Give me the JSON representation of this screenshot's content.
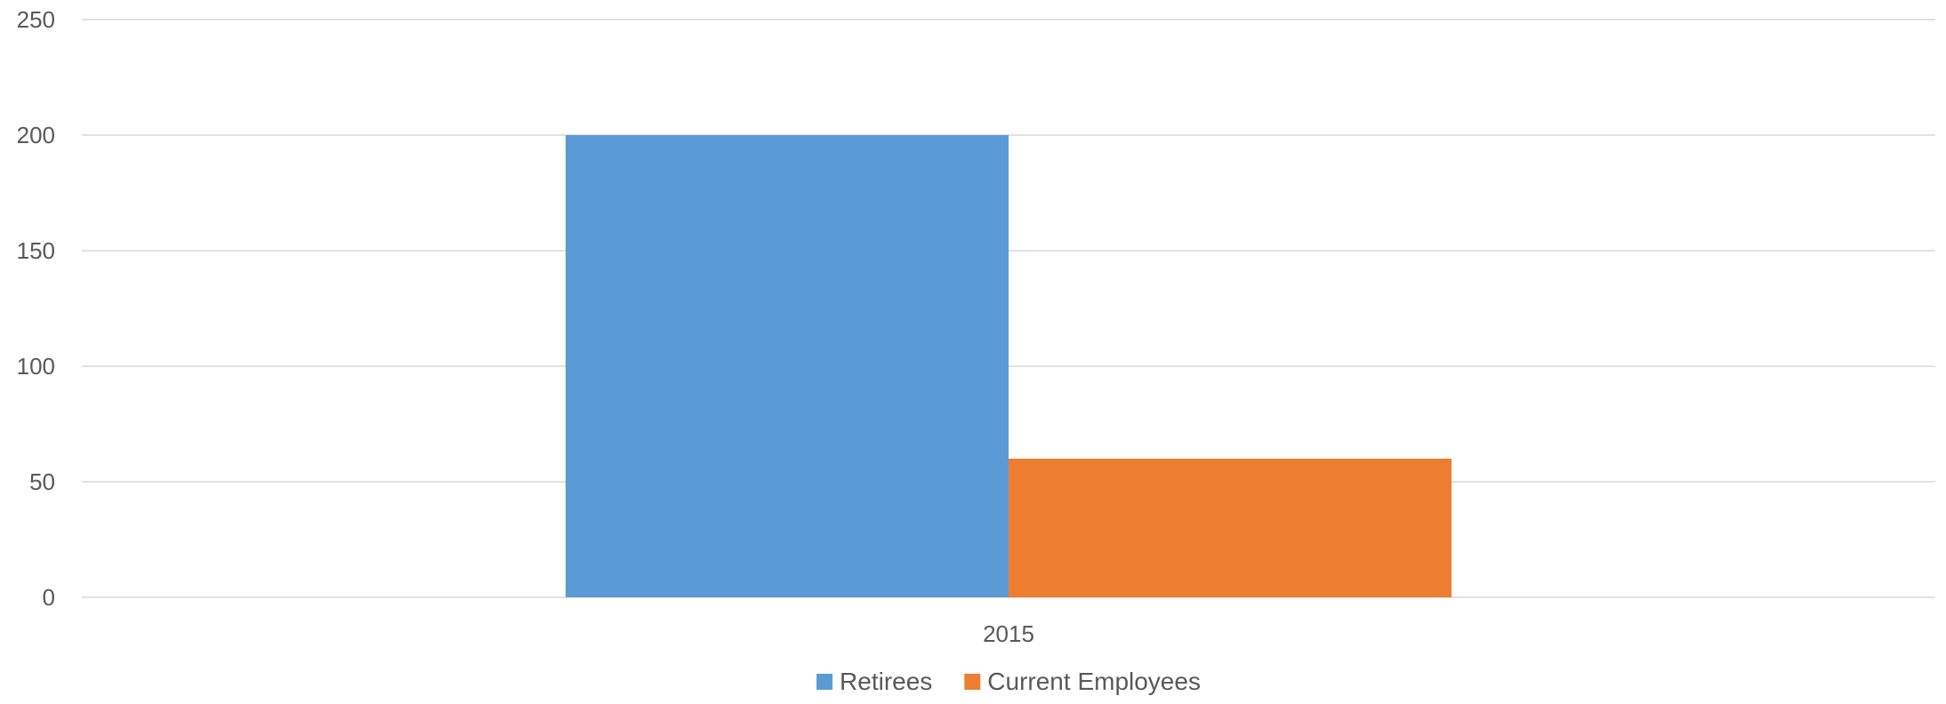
{
  "chart_data": {
    "type": "bar",
    "categories": [
      "2015"
    ],
    "series": [
      {
        "name": "Retirees",
        "values": [
          200
        ],
        "color": "#5B9BD5"
      },
      {
        "name": "Current Employees",
        "values": [
          60
        ],
        "color": "#ED7D31"
      }
    ],
    "ylim": [
      0,
      250
    ],
    "yticks": [
      0,
      50,
      100,
      150,
      200,
      250
    ],
    "grid": true,
    "legend_position": "bottom"
  }
}
